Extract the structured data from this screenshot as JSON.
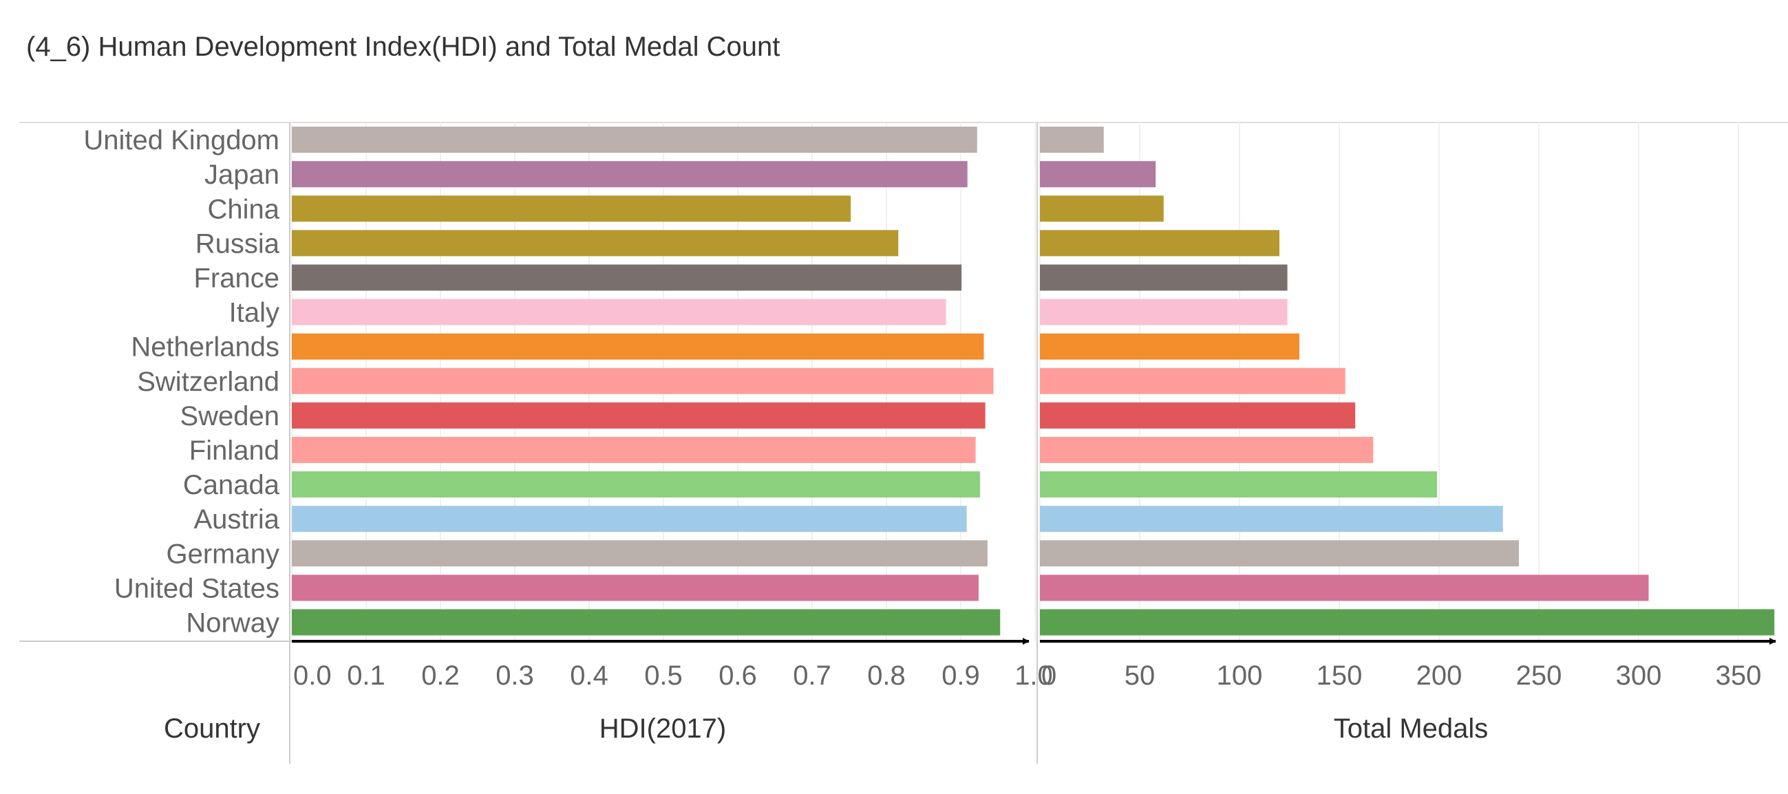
{
  "chart_data": {
    "type": "bar",
    "orientation": "horizontal",
    "title": "(4_6) Human Development Index(HDI) and Total Medal Count",
    "row_header": "Country",
    "categories": [
      "United Kingdom",
      "Japan",
      "China",
      "Russia",
      "France",
      "Italy",
      "Netherlands",
      "Switzerland",
      "Sweden",
      "Finland",
      "Canada",
      "Austria",
      "Germany",
      "United States",
      "Norway"
    ],
    "colors": [
      "#bcb0ac",
      "#b07aa1",
      "#b5992e",
      "#b5992e",
      "#79706e",
      "#fabfd2",
      "#f28e2b",
      "#ff9d9a",
      "#e15759",
      "#ff9d9a",
      "#8cd17d",
      "#a0cbe8",
      "#bab0ac",
      "#d37295",
      "#59a14f"
    ],
    "panels": [
      {
        "name": "hdi",
        "xlabel": "HDI(2017)",
        "xlim": [
          0,
          1.0
        ],
        "ticks": [
          0.0,
          0.1,
          0.2,
          0.3,
          0.4,
          0.5,
          0.6,
          0.7,
          0.8,
          0.9,
          1.0
        ],
        "tick_labels": [
          "0.0",
          "0.1",
          "0.2",
          "0.3",
          "0.4",
          "0.5",
          "0.6",
          "0.7",
          "0.8",
          "0.9",
          "1.0"
        ],
        "values": [
          0.922,
          0.909,
          0.752,
          0.816,
          0.901,
          0.88,
          0.931,
          0.944,
          0.933,
          0.92,
          0.926,
          0.908,
          0.936,
          0.924,
          0.953
        ]
      },
      {
        "name": "medals",
        "xlabel": "Total Medals",
        "xlim": [
          0,
          380
        ],
        "ticks": [
          0,
          50,
          100,
          150,
          200,
          250,
          300,
          350
        ],
        "tick_labels": [
          "0",
          "50",
          "100",
          "150",
          "200",
          "250",
          "300",
          "350"
        ],
        "values": [
          32,
          58,
          62,
          120,
          124,
          124,
          130,
          153,
          158,
          167,
          199,
          232,
          240,
          305,
          368
        ]
      }
    ],
    "grid": true,
    "legend": "none"
  }
}
